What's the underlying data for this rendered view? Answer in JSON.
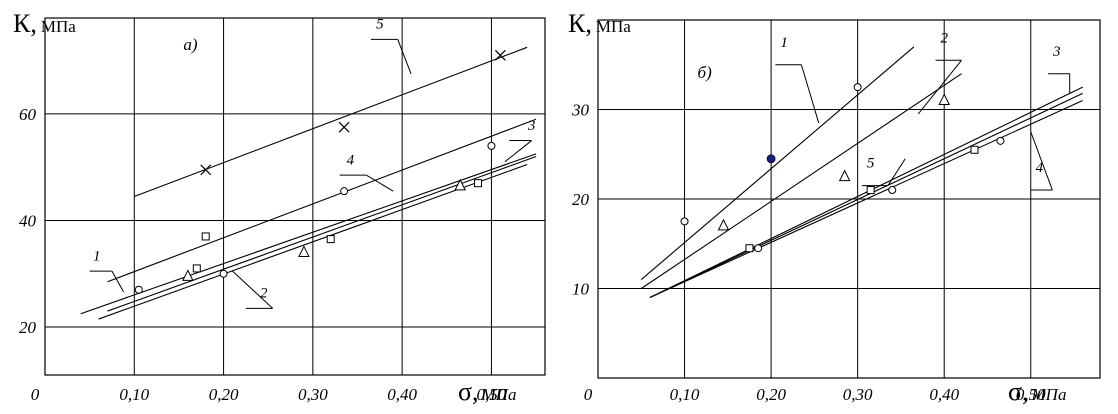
{
  "chart_data": [
    {
      "type": "scatter",
      "panel_label": "а)",
      "ylabel_symbol": "К,",
      "ylabel_unit": "МПа",
      "xlabel_symbol": "σ,",
      "xlabel_unit": "МПа",
      "x_ticks": [
        "0",
        "0,10",
        "0,20",
        "0,30",
        "0,40",
        "0,50"
      ],
      "y_ticks": [
        "20",
        "40",
        "60"
      ],
      "xlim": [
        0,
        0.56
      ],
      "ylim": [
        11,
        78
      ],
      "grid": true,
      "lines": [
        {
          "label": "1",
          "x": [
            0.04,
            0.55
          ],
          "y": [
            22.5,
            52.5
          ]
        },
        {
          "label": "2",
          "x": [
            0.06,
            0.54
          ],
          "y": [
            21.5,
            50.5
          ]
        },
        {
          "label": "3",
          "x": [
            0.07,
            0.55
          ],
          "y": [
            23.0,
            52.0
          ]
        },
        {
          "label": "4",
          "x": [
            0.07,
            0.55
          ],
          "y": [
            28.5,
            59.0
          ]
        },
        {
          "label": "5",
          "x": [
            0.1,
            0.54
          ],
          "y": [
            44.5,
            72.5
          ]
        }
      ],
      "points": [
        {
          "marker": "x",
          "x": 0.18,
          "y": 49.5
        },
        {
          "marker": "x",
          "x": 0.335,
          "y": 57.5
        },
        {
          "marker": "x",
          "x": 0.51,
          "y": 71.0
        },
        {
          "marker": "circle",
          "x": 0.105,
          "y": 27.0
        },
        {
          "marker": "circle",
          "x": 0.2,
          "y": 30.0
        },
        {
          "marker": "circle",
          "x": 0.335,
          "y": 45.5
        },
        {
          "marker": "circle",
          "x": 0.5,
          "y": 54.0
        },
        {
          "marker": "square",
          "x": 0.18,
          "y": 37.0
        },
        {
          "marker": "square",
          "x": 0.17,
          "y": 31.0
        },
        {
          "marker": "square",
          "x": 0.32,
          "y": 36.5
        },
        {
          "marker": "square",
          "x": 0.485,
          "y": 47.0
        },
        {
          "marker": "triangle",
          "x": 0.16,
          "y": 29.5
        },
        {
          "marker": "triangle",
          "x": 0.29,
          "y": 34.0
        },
        {
          "marker": "triangle",
          "x": 0.465,
          "y": 46.5
        }
      ]
    },
    {
      "type": "scatter",
      "panel_label": "б)",
      "ylabel_symbol": "К,",
      "ylabel_unit": "МПа",
      "xlabel_symbol": "σ,",
      "xlabel_unit": "МПа",
      "x_ticks": [
        "0",
        "0,10",
        "0,20",
        "0,30",
        "0,40",
        "0,50"
      ],
      "y_ticks": [
        "10",
        "20",
        "30"
      ],
      "xlim": [
        0,
        0.58
      ],
      "ylim": [
        0,
        40
      ],
      "grid": true,
      "lines": [
        {
          "label": "1",
          "x": [
            0.05,
            0.365
          ],
          "y": [
            11.0,
            37.0
          ]
        },
        {
          "label": "2",
          "x": [
            0.05,
            0.42
          ],
          "y": [
            10.0,
            34.0
          ]
        },
        {
          "label": "3",
          "x": [
            0.06,
            0.56
          ],
          "y": [
            9.0,
            32.5
          ]
        },
        {
          "label": "4",
          "x": [
            0.06,
            0.56
          ],
          "y": [
            9.0,
            31.0
          ]
        },
        {
          "label": "5",
          "x": [
            0.06,
            0.56
          ],
          "y": [
            9.0,
            31.8
          ]
        }
      ],
      "points": [
        {
          "marker": "circle",
          "x": 0.1,
          "y": 17.5
        },
        {
          "marker": "circle",
          "x": 0.3,
          "y": 32.5
        },
        {
          "marker": "dot",
          "x": 0.2,
          "y": 24.5
        },
        {
          "marker": "triangle",
          "x": 0.145,
          "y": 17.0
        },
        {
          "marker": "triangle",
          "x": 0.285,
          "y": 22.5
        },
        {
          "marker": "triangle",
          "x": 0.4,
          "y": 31.0
        },
        {
          "marker": "square",
          "x": 0.175,
          "y": 14.5
        },
        {
          "marker": "square",
          "x": 0.315,
          "y": 21.0
        },
        {
          "marker": "square",
          "x": 0.435,
          "y": 25.5
        },
        {
          "marker": "circle",
          "x": 0.185,
          "y": 14.5
        },
        {
          "marker": "circle",
          "x": 0.34,
          "y": 21.0
        },
        {
          "marker": "circle",
          "x": 0.465,
          "y": 26.5
        }
      ]
    }
  ]
}
